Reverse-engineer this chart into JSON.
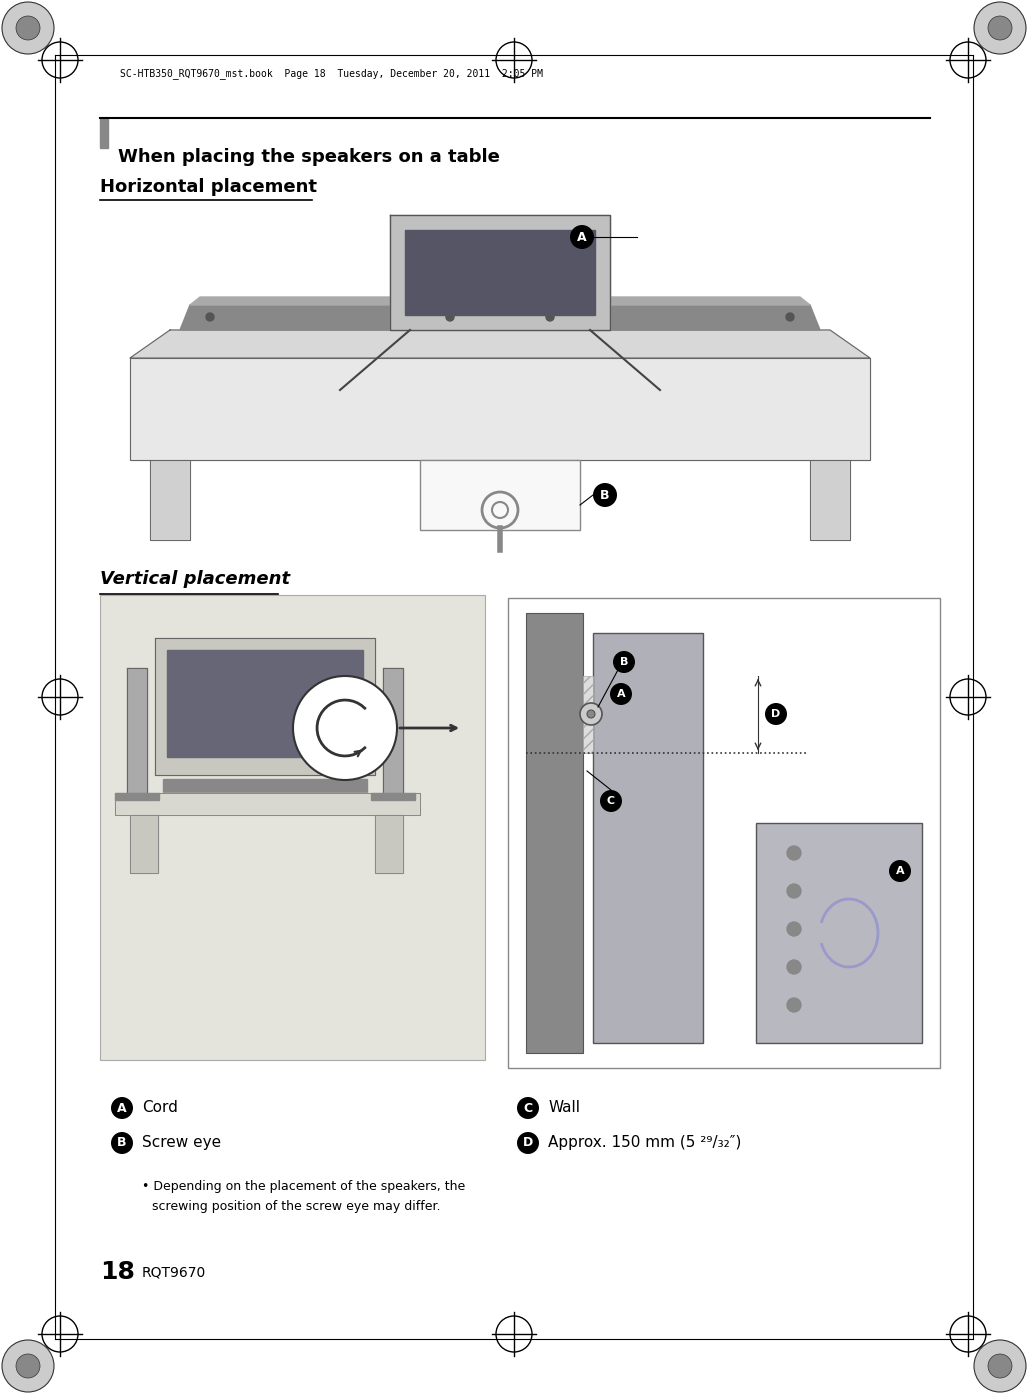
{
  "page_num": "18",
  "page_code": "RQT9670",
  "header_text": "SC-HTB350_RQT9670_mst.book  Page 18  Tuesday, December 20, 2011  2:05 PM",
  "section_title": "When placing the speakers on a table",
  "subsection1": "Horizontal placement",
  "subsection2": "Vertical placement",
  "label_A": "Cord",
  "label_B": "Screw eye",
  "label_C": "Wall",
  "label_D": "Approx. 150 mm (5 ²⁹/₃₂″)",
  "bullet_line1": "Depending on the placement of the speakers, the",
  "bullet_line2": "screwing position of the screw eye may differ.",
  "bg_color": "#ffffff",
  "gray_bar_color": "#888888",
  "black": "#000000",
  "light_gray": "#d0d0d0",
  "mid_gray": "#b0b0b0",
  "crosshair_color": "#000000"
}
